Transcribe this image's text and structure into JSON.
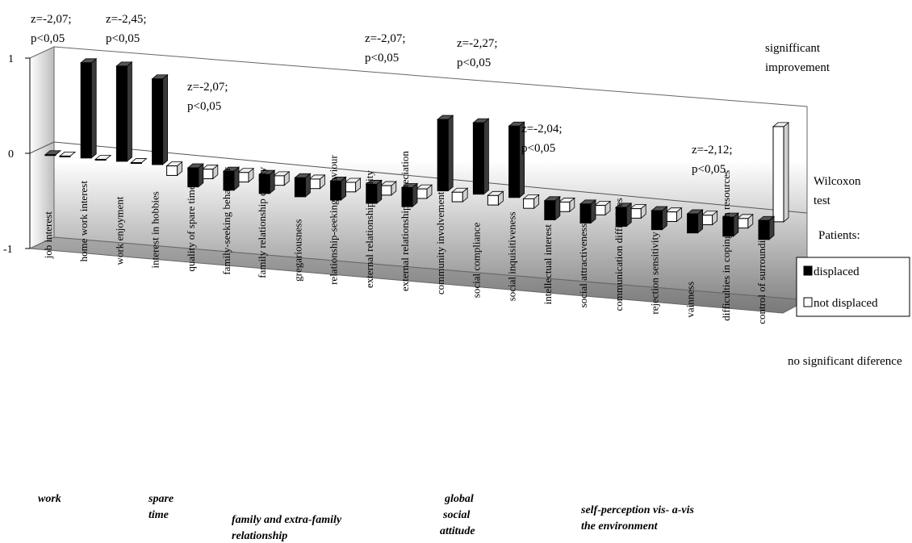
{
  "chart_data": {
    "type": "bar",
    "title": "",
    "ylim": [
      -1,
      1
    ],
    "ytick_labels": [
      "1",
      "0",
      "-1"
    ],
    "y_axis_top_label": "signifficant improvement",
    "y_axis_middle_label": "Wilcoxon test",
    "y_axis_bottom_label": "no significant diference",
    "legend": {
      "title": "Patients:",
      "items": [
        "displaced",
        "not displaced"
      ]
    },
    "series": [
      {
        "name": "displaced",
        "color": "#000000",
        "values": [
          0,
          1,
          1,
          0.9,
          -0.2,
          -0.2,
          -0.2,
          -0.2,
          -0.2,
          -0.2,
          -0.2,
          0.75,
          0.75,
          0.75,
          -0.2,
          -0.2,
          -0.2,
          -0.2,
          -0.2,
          -0.2,
          -0.2
        ]
      },
      {
        "name": "not displaced",
        "color": "#ffffff",
        "values": [
          0,
          0,
          0,
          -0.1,
          -0.1,
          -0.1,
          -0.1,
          -0.1,
          -0.1,
          -0.1,
          -0.1,
          -0.1,
          -0.1,
          -0.1,
          -0.1,
          -0.1,
          -0.1,
          -0.1,
          -0.1,
          -0.1,
          1
        ]
      }
    ],
    "categories": [
      "job interest",
      "home work interest",
      "work enjoyment",
      "interest in hobbies",
      "quality of spare time",
      "family-seeking behaviour",
      "family relationship quality",
      "gregariousness",
      "relationship-seeking bahaviour",
      "external relationship quality",
      "external relationship appreciation",
      "community involvement",
      "social compliance",
      "social inquisitiveness",
      "intellectual interest",
      "social attractiveness",
      "communication difficulties",
      "rejection sensitivity",
      "vainness",
      "difficulties in coping with resources",
      "control of surroundings"
    ],
    "groups": [
      "work",
      "spare time",
      "family and extra-family relationship",
      "global social attitude",
      "self-perception vis- a-vis the environment"
    ],
    "annotations": [
      "z=-2,07; p<0,05",
      "z=-2,45; p<0,05",
      "z=-2,07; p<0,05",
      "z=-2,07; p<0,05",
      "z=-2,27; p<0,05",
      "z=-2,04; p<0,05",
      "z=-2,12; p<0,05"
    ]
  }
}
